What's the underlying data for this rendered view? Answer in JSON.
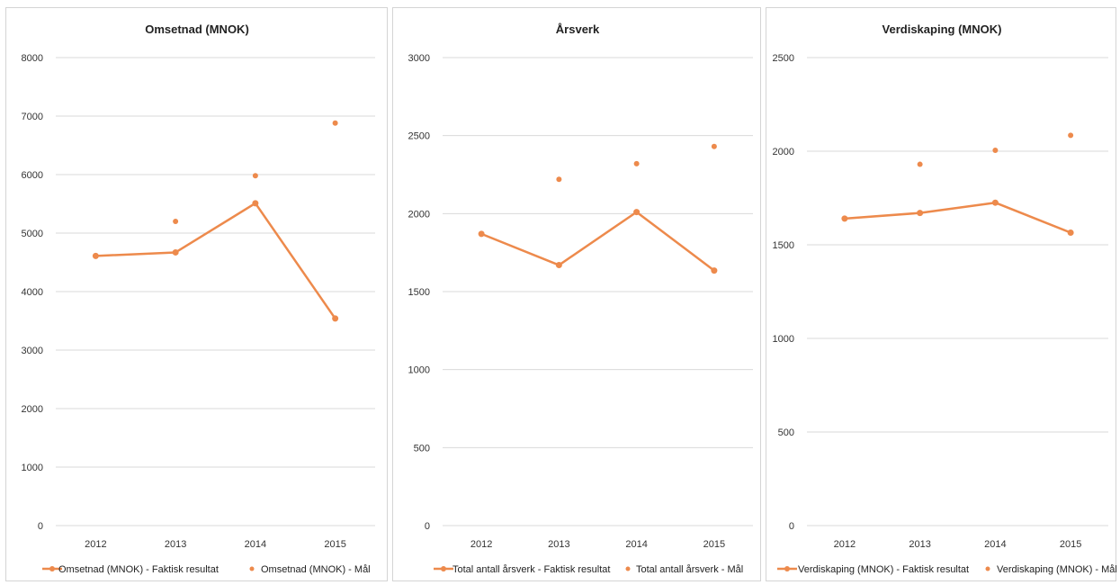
{
  "colors": {
    "series": "#ed8a4c",
    "grid": "#d9d9d9"
  },
  "chart_data": [
    {
      "type": "line",
      "title": "Omsetnad (MNOK)",
      "categories": [
        "2012",
        "2013",
        "2014",
        "2015"
      ],
      "ylim": [
        0,
        8000
      ],
      "yticks": [
        "0",
        "1000",
        "2000",
        "3000",
        "4000",
        "5000",
        "6000",
        "7000",
        "8000"
      ],
      "grid": true,
      "legend_position": "bottom",
      "series": [
        {
          "name": "Omsetnad (MNOK) - Faktisk resultat",
          "style": "line-marker",
          "values": [
            4610,
            4670,
            5510,
            3540
          ]
        },
        {
          "name": "Omsetnad (MNOK) - Mål",
          "style": "marker",
          "values": [
            null,
            5200,
            5980,
            6880
          ]
        }
      ]
    },
    {
      "type": "line",
      "title": "Årsverk",
      "categories": [
        "2012",
        "2013",
        "2014",
        "2015"
      ],
      "ylim": [
        0,
        3000
      ],
      "yticks": [
        "0",
        "500",
        "1000",
        "1500",
        "2000",
        "2500",
        "3000"
      ],
      "grid": true,
      "legend_position": "bottom",
      "series": [
        {
          "name": "Total antall årsverk - Faktisk resultat",
          "style": "line-marker",
          "values": [
            1870,
            1670,
            2010,
            1635
          ]
        },
        {
          "name": "Total antall årsverk - Mål",
          "style": "marker",
          "values": [
            null,
            2220,
            2320,
            2430
          ]
        }
      ]
    },
    {
      "type": "line",
      "title": "Verdiskaping (MNOK)",
      "categories": [
        "2012",
        "2013",
        "2014",
        "2015"
      ],
      "ylim": [
        0,
        2500
      ],
      "yticks": [
        "0",
        "500",
        "1000",
        "1500",
        "2000",
        "2500"
      ],
      "grid": true,
      "legend_position": "bottom",
      "series": [
        {
          "name": "Verdiskaping (MNOK) - Faktisk resultat",
          "style": "line-marker",
          "values": [
            1640,
            1670,
            1725,
            1565
          ]
        },
        {
          "name": "Verdiskaping (MNOK) - Mål",
          "style": "marker",
          "values": [
            null,
            1930,
            2005,
            2085
          ]
        }
      ]
    }
  ]
}
